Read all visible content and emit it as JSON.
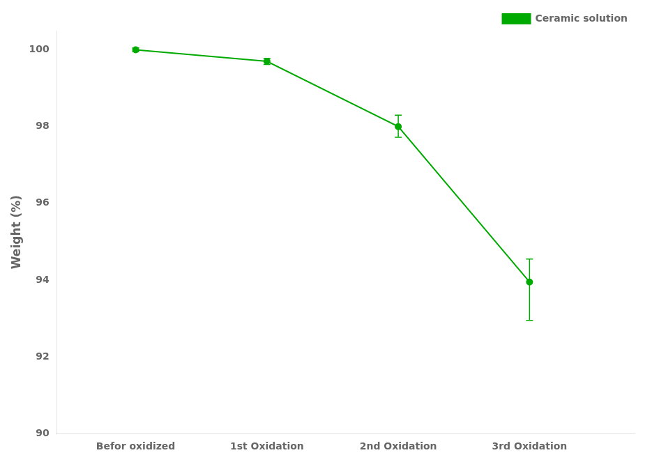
{
  "chart_data": {
    "type": "line",
    "x": [
      1,
      2,
      3,
      4
    ],
    "series": [
      {
        "name": "Ceramic solution",
        "color": "#00aa00",
        "marker": "circle",
        "line_style": "solid",
        "values": [
          100.0,
          99.7,
          98.0,
          93.95
        ],
        "error_upper": [
          0.05,
          0.08,
          0.3,
          0.6
        ],
        "error_lower": [
          0.05,
          0.08,
          0.28,
          1.0
        ]
      }
    ],
    "ylabel": "Weight (%)",
    "xlim": [
      0.4,
      4.8
    ],
    "ylim": [
      90,
      100.5
    ],
    "xticks": [
      {
        "value": 1,
        "label": "Befor oxidized"
      },
      {
        "value": 2,
        "label": "1st Oxidation"
      },
      {
        "value": 3,
        "label": "2nd Oxidation"
      },
      {
        "value": 4,
        "label": "3rd Oxidation"
      }
    ],
    "yticks": [
      90,
      92,
      94,
      96,
      98,
      100
    ],
    "grid": false,
    "legend": "upper right"
  }
}
